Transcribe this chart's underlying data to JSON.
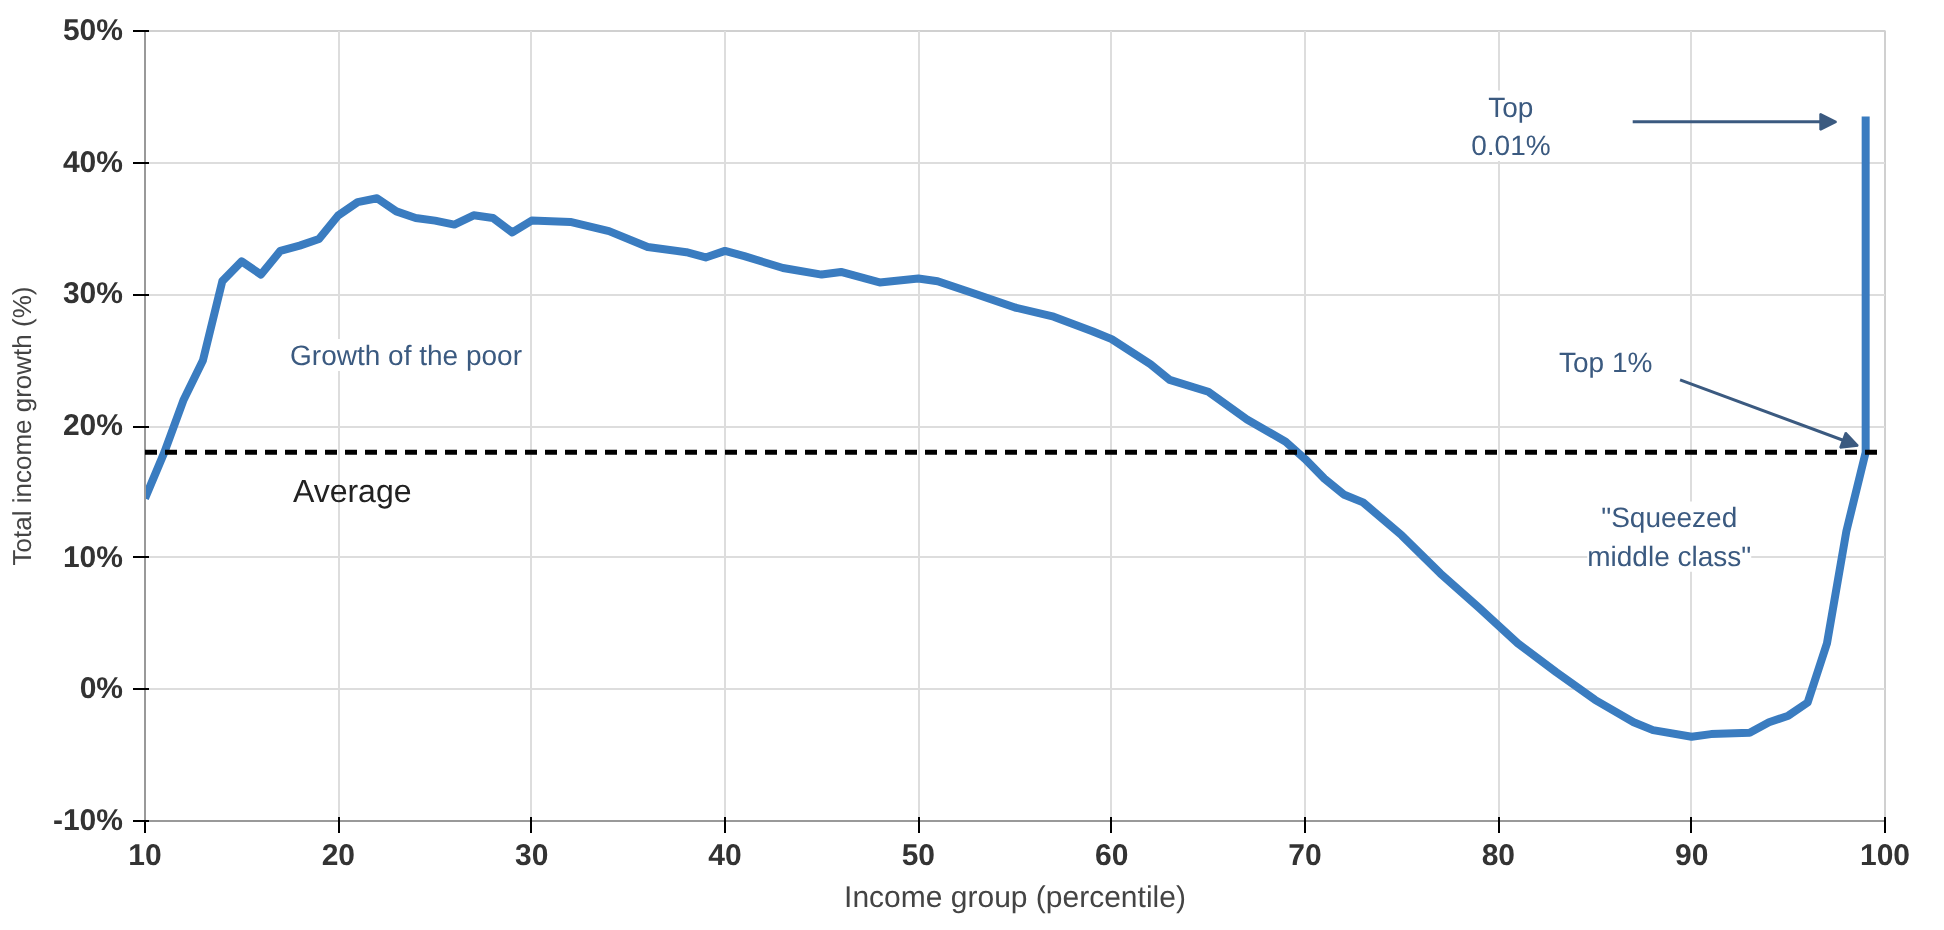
{
  "chart_data": {
    "type": "line",
    "xlabel": "Income group (percentile)",
    "ylabel": "Total income growth (%)",
    "x": [
      10,
      11,
      12,
      13,
      14,
      15,
      16,
      17,
      18,
      19,
      20,
      21,
      22,
      23,
      24,
      25,
      26,
      27,
      28,
      29,
      30,
      32,
      34,
      36,
      38,
      39,
      40,
      41,
      43,
      45,
      46,
      48,
      50,
      51,
      53,
      55,
      57,
      59,
      60,
      62,
      63,
      65,
      67,
      69,
      70,
      71,
      72,
      73,
      75,
      77,
      79,
      81,
      83,
      85,
      87,
      88,
      90,
      91,
      93,
      94,
      95,
      96,
      97,
      98,
      99,
      99
    ],
    "series": [
      {
        "color": "#3a7cc0",
        "values": [
          14.5,
          18,
          22,
          25,
          31,
          32.5,
          31.5,
          33.3,
          33.7,
          34.2,
          36,
          37,
          37.3,
          36.3,
          35.8,
          35.6,
          35.3,
          36,
          35.8,
          34.7,
          35.6,
          35.5,
          34.8,
          33.6,
          33.2,
          32.8,
          33.3,
          32.9,
          32,
          31.5,
          31.7,
          30.9,
          31.2,
          31,
          30,
          29,
          28.3,
          27.2,
          26.6,
          24.7,
          23.5,
          22.6,
          20.5,
          18.8,
          17.5,
          16,
          14.8,
          14.2,
          11.7,
          8.8,
          6.2,
          3.5,
          1.3,
          -0.8,
          -2.5,
          -3.1,
          -3.6,
          -3.4,
          -3.3,
          -2.5,
          -2,
          -1,
          3.5,
          12,
          18,
          43.5
        ]
      }
    ],
    "xlim": [
      10,
      100
    ],
    "ylim": [
      -10,
      50
    ],
    "xticks": [
      10,
      20,
      30,
      40,
      50,
      60,
      70,
      80,
      90,
      100
    ],
    "yticks": [
      {
        "value": -10,
        "label": "-10%"
      },
      {
        "value": 0,
        "label": "0%"
      },
      {
        "value": 10,
        "label": "10%"
      },
      {
        "value": 20,
        "label": "20%"
      },
      {
        "value": 30,
        "label": "30%"
      },
      {
        "value": 40,
        "label": "40%"
      },
      {
        "value": 50,
        "label": "50%"
      }
    ],
    "grid": true,
    "marker": "none",
    "line_style": "solid",
    "ref_lines": [
      {
        "axis": "y",
        "value": 18,
        "label": "Average",
        "color": "#000000",
        "line_style": "dashed"
      }
    ],
    "annotations": [
      "Growth of the poor",
      "\"Squeezed\nmiddle class\"",
      {
        "text": "Top 1%",
        "x": 99,
        "y": 18
      },
      "Top\n0.01%"
    ]
  }
}
